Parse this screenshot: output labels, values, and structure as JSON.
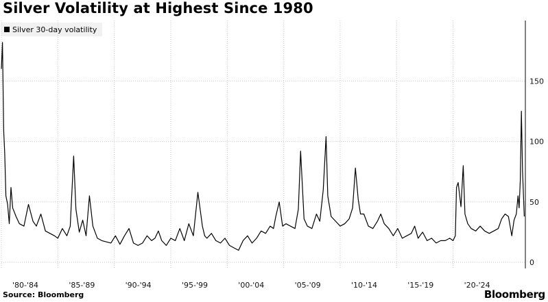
{
  "title": "Silver Volatility at Highest Since 1980",
  "source": "Source:  Bloomberg",
  "brand": "Bloomberg",
  "chart_data": {
    "type": "line",
    "title": "Silver Volatility at Highest Since 1980",
    "xlabel": "",
    "ylabel": "",
    "legend_position": "top-left",
    "grid": true,
    "y_axis_side": "right",
    "ylim": [
      -5,
      200
    ],
    "y_ticks": [
      0,
      50,
      100,
      150
    ],
    "xlim": [
      1980.0,
      2026.4
    ],
    "x_tick_labels": [
      "'80-'84",
      "'85-'89",
      "'90-'94",
      "'95-'99",
      "'00-'04",
      "'05-'09",
      "'10-'14",
      "'15-'19",
      "'20-'24"
    ],
    "x_tick_positions": [
      1980,
      1985,
      1990,
      1995,
      2000,
      2005,
      2010,
      2015,
      2020
    ],
    "colors": {
      "line": "#000000",
      "grid": "#c8c8c8"
    },
    "series": [
      {
        "name": "Silver 30-day volatility",
        "x": [
          1980.0,
          1980.1,
          1980.2,
          1980.3,
          1980.4,
          1980.55,
          1980.7,
          1980.85,
          1981.0,
          1981.3,
          1981.6,
          1982.0,
          1982.4,
          1982.8,
          1983.1,
          1983.5,
          1983.9,
          1984.3,
          1984.7,
          1985.0,
          1985.4,
          1985.8,
          1986.1,
          1986.4,
          1986.6,
          1986.9,
          1987.2,
          1987.5,
          1987.8,
          1988.1,
          1988.5,
          1988.9,
          1989.3,
          1989.7,
          1990.1,
          1990.5,
          1990.9,
          1991.3,
          1991.7,
          1992.1,
          1992.5,
          1992.9,
          1993.3,
          1993.6,
          1993.9,
          1994.2,
          1994.6,
          1995.0,
          1995.4,
          1995.8,
          1996.2,
          1996.6,
          1997.0,
          1997.4,
          1997.8,
          1998.0,
          1998.2,
          1998.6,
          1999.0,
          1999.4,
          1999.8,
          2000.2,
          2000.6,
          2001.0,
          2001.4,
          2001.8,
          2002.2,
          2002.6,
          2003.0,
          2003.4,
          2003.8,
          2004.1,
          2004.3,
          2004.6,
          2004.9,
          2005.2,
          2005.6,
          2006.0,
          2006.3,
          2006.5,
          2006.8,
          2007.1,
          2007.5,
          2007.9,
          2008.2,
          2008.5,
          2008.75,
          2008.9,
          2009.2,
          2009.6,
          2010.0,
          2010.4,
          2010.8,
          2011.1,
          2011.35,
          2011.6,
          2011.8,
          2012.1,
          2012.5,
          2012.9,
          2013.3,
          2013.6,
          2013.9,
          2014.3,
          2014.7,
          2015.1,
          2015.5,
          2015.9,
          2016.3,
          2016.6,
          2016.9,
          2017.3,
          2017.7,
          2018.1,
          2018.5,
          2018.9,
          2019.3,
          2019.7,
          2020.0,
          2020.2,
          2020.3,
          2020.45,
          2020.7,
          2020.9,
          2021.05,
          2021.3,
          2021.6,
          2022.0,
          2022.4,
          2022.8,
          2023.2,
          2023.6,
          2024.0,
          2024.3,
          2024.6,
          2024.9,
          2025.2,
          2025.4,
          2025.6,
          2025.75,
          2025.85,
          2025.95,
          2026.05,
          2026.15,
          2026.3
        ],
        "values": [
          160,
          182,
          110,
          90,
          55,
          48,
          32,
          62,
          45,
          38,
          32,
          30,
          48,
          34,
          30,
          40,
          26,
          24,
          22,
          20,
          28,
          22,
          30,
          88,
          44,
          25,
          35,
          22,
          55,
          30,
          20,
          18,
          17,
          16,
          22,
          15,
          22,
          28,
          16,
          14,
          16,
          22,
          18,
          20,
          26,
          18,
          14,
          20,
          18,
          28,
          18,
          32,
          22,
          58,
          30,
          22,
          20,
          24,
          18,
          16,
          20,
          14,
          12,
          10,
          18,
          22,
          16,
          20,
          26,
          24,
          30,
          28,
          38,
          50,
          30,
          32,
          30,
          28,
          44,
          92,
          36,
          30,
          28,
          40,
          34,
          60,
          104,
          55,
          38,
          34,
          30,
          32,
          36,
          45,
          78,
          52,
          40,
          40,
          30,
          28,
          34,
          40,
          32,
          28,
          22,
          28,
          20,
          22,
          24,
          30,
          20,
          25,
          18,
          20,
          16,
          18,
          18,
          20,
          18,
          22,
          62,
          66,
          46,
          80,
          40,
          32,
          28,
          26,
          30,
          26,
          24,
          26,
          28,
          36,
          40,
          38,
          22,
          35,
          40,
          55,
          45,
          68,
          125,
          75,
          38
        ]
      }
    ]
  }
}
